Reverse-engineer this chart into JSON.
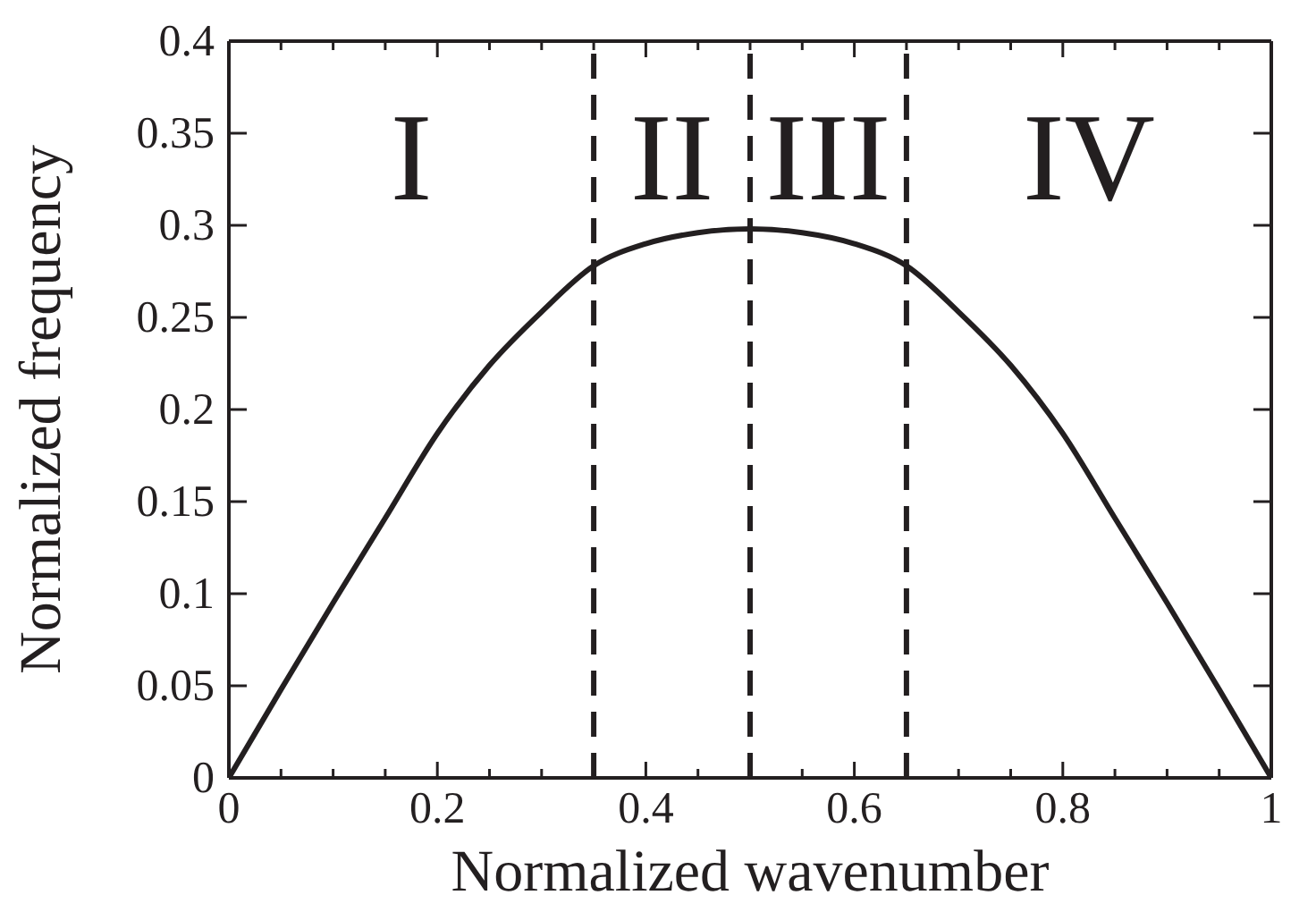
{
  "chart_data": {
    "type": "line",
    "xlabel": "Normalized wavenumber",
    "ylabel": "Normalized frequency",
    "x": [
      0,
      0.05,
      0.1,
      0.15,
      0.2,
      0.25,
      0.3,
      0.35,
      0.4,
      0.45,
      0.5,
      0.55,
      0.6,
      0.65,
      0.7,
      0.75,
      0.8,
      0.85,
      0.9,
      0.95,
      1
    ],
    "series": [
      {
        "color": "#231f20",
        "values": [
          0,
          0.048,
          0.095,
          0.141,
          0.187,
          0.224,
          0.253,
          0.278,
          0.29,
          0.296,
          0.298,
          0.296,
          0.29,
          0.278,
          0.253,
          0.224,
          0.187,
          0.141,
          0.095,
          0.048,
          0
        ]
      }
    ],
    "xlim": [
      0,
      1
    ],
    "ylim": [
      0,
      0.4
    ],
    "xticks": [
      0,
      {
        "value": 0.05,
        "label": null
      },
      {
        "value": 0.1,
        "label": null
      },
      {
        "value": 0.15,
        "label": null
      },
      0.2,
      {
        "value": 0.25,
        "label": null
      },
      {
        "value": 0.3,
        "label": null
      },
      {
        "value": 0.35,
        "label": null
      },
      0.4,
      {
        "value": 0.45,
        "label": null
      },
      {
        "value": 0.5,
        "label": null
      },
      {
        "value": 0.55,
        "label": null
      },
      0.6,
      {
        "value": 0.65,
        "label": null
      },
      {
        "value": 0.7,
        "label": null
      },
      {
        "value": 0.75,
        "label": null
      },
      0.8,
      {
        "value": 0.85,
        "label": null
      },
      {
        "value": 0.9,
        "label": null
      },
      {
        "value": 0.95,
        "label": null
      },
      1
    ],
    "yticks": [
      0,
      0.05,
      0.1,
      0.15,
      0.2,
      0.25,
      0.3,
      0.35,
      0.4
    ],
    "marker": "none",
    "line_style": "solid",
    "ref_lines": [
      {
        "axis": "x",
        "value": 0.35,
        "color": "#231f20",
        "line_style": "dashed"
      },
      {
        "axis": "x",
        "value": 0.5,
        "color": "#231f20",
        "line_style": "dashed"
      },
      {
        "axis": "x",
        "value": 0.65,
        "color": "#231f20",
        "line_style": "dashed"
      }
    ],
    "annotations": [
      "I",
      "II",
      "III",
      "IV"
    ]
  }
}
